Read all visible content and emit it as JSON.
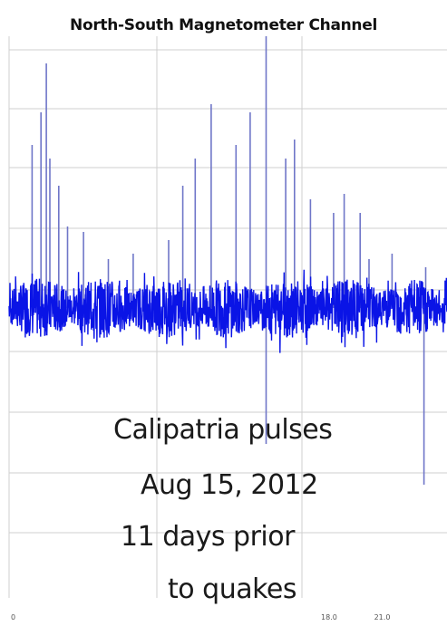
{
  "chart_data": {
    "type": "line",
    "title": "North-South Magnetometer Channel",
    "xlabel": "",
    "ylabel": "",
    "x_tick_labels": [
      "0",
      "18.0",
      "21.0"
    ],
    "x_ticks": [
      0,
      18.0,
      21.0
    ],
    "xlim": [
      0,
      24.7
    ],
    "ylim": [
      -1.0,
      1.0
    ],
    "grid": true,
    "colors": {
      "trace": "#0a14e6",
      "spike": "#6f76c8",
      "grid": "#cfcfcf"
    },
    "series": [
      {
        "values_description_free": true,
        "spikes": [
          {
            "x": 1.3,
            "y": 0.6
          },
          {
            "x": 1.8,
            "y": 0.72
          },
          {
            "x": 2.1,
            "y": 0.9
          },
          {
            "x": 2.3,
            "y": 0.55
          },
          {
            "x": 2.8,
            "y": 0.45
          },
          {
            "x": 3.3,
            "y": 0.3
          },
          {
            "x": 4.2,
            "y": 0.28
          },
          {
            "x": 5.6,
            "y": 0.18
          },
          {
            "x": 7.0,
            "y": 0.2
          },
          {
            "x": 9.0,
            "y": 0.25
          },
          {
            "x": 9.8,
            "y": 0.45
          },
          {
            "x": 10.5,
            "y": 0.55
          },
          {
            "x": 11.4,
            "y": 0.75
          },
          {
            "x": 12.8,
            "y": 0.6
          },
          {
            "x": 13.6,
            "y": 0.72
          },
          {
            "x": 14.5,
            "y": 1.0
          },
          {
            "x": 14.5,
            "y": -0.5
          },
          {
            "x": 15.6,
            "y": 0.55
          },
          {
            "x": 16.1,
            "y": 0.62
          },
          {
            "x": 17.0,
            "y": 0.4
          },
          {
            "x": 18.3,
            "y": 0.35
          },
          {
            "x": 18.9,
            "y": 0.42
          },
          {
            "x": 19.8,
            "y": 0.35
          },
          {
            "x": 20.3,
            "y": 0.18
          },
          {
            "x": 21.6,
            "y": 0.2
          },
          {
            "x": 23.5,
            "y": 0.15
          },
          {
            "x": 23.4,
            "y": -0.65
          }
        ]
      }
    ]
  },
  "caption": {
    "line1": "Calipatria pulses",
    "line2": "Aug 15, 2012",
    "line3": "11  days prior",
    "line4": "to quakes"
  }
}
